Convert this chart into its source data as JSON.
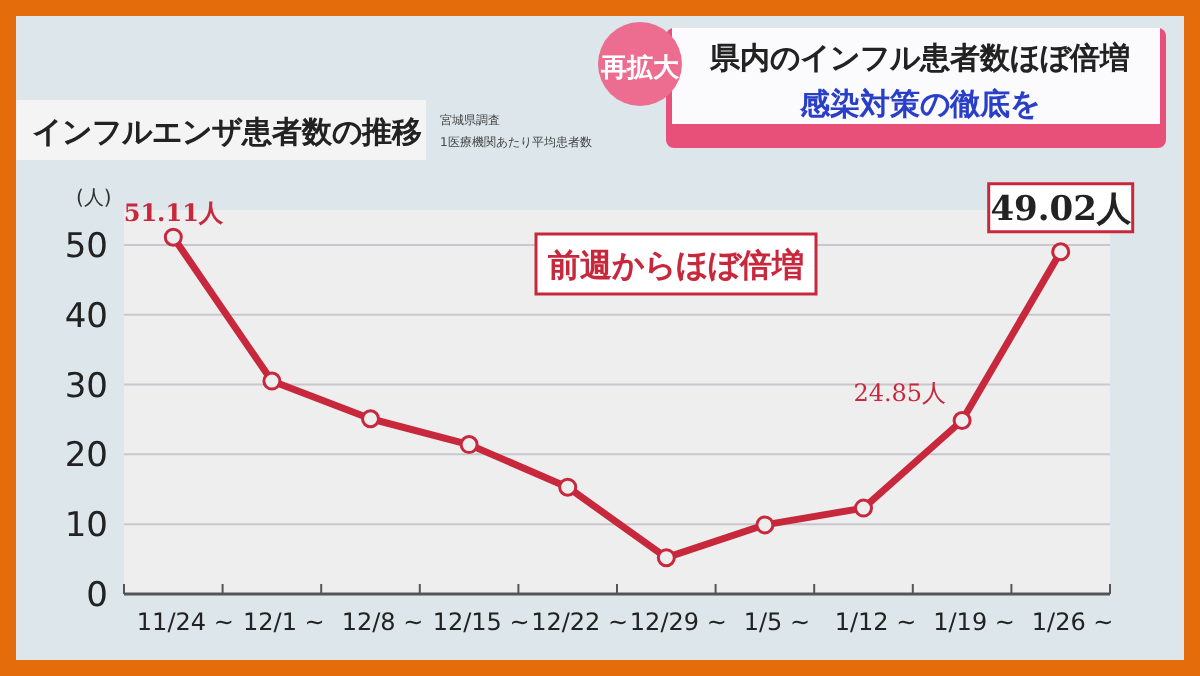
{
  "chart_data": {
    "type": "line",
    "title": "インフルエンザ患者数の推移",
    "subtitle": "1医療機関あたり平均患者数",
    "ylabel": "(人)",
    "categories": [
      "11/24 ~",
      "12/1 ~",
      "12/8 ~",
      "12/15 ~",
      "12/22 ~",
      "12/29 ~",
      "1/5 ~",
      "1/12 ~",
      "1/19 ~",
      "1/26 ~"
    ],
    "series": [
      {
        "color": "#c8283c",
        "values": [
          51.11,
          30.5,
          25.1,
          21.4,
          15.3,
          5.2,
          9.9,
          12.3,
          24.85,
          49.02
        ],
        "value_labels": [
          "51.11人",
          null,
          null,
          null,
          null,
          null,
          null,
          null,
          "24.85人",
          "49.02人"
        ]
      }
    ],
    "ylim": [
      0,
      55
    ],
    "yticks": [
      0,
      10,
      20,
      30,
      40,
      50
    ],
    "grid": "y",
    "marker": "circle",
    "line_style": "solid",
    "annotations": [
      "宮城県調査",
      "再拡大",
      "県内のインフル患者数ほぼ倍増",
      "感染対策の徹底を",
      "前週からほぼ倍増"
    ]
  }
}
